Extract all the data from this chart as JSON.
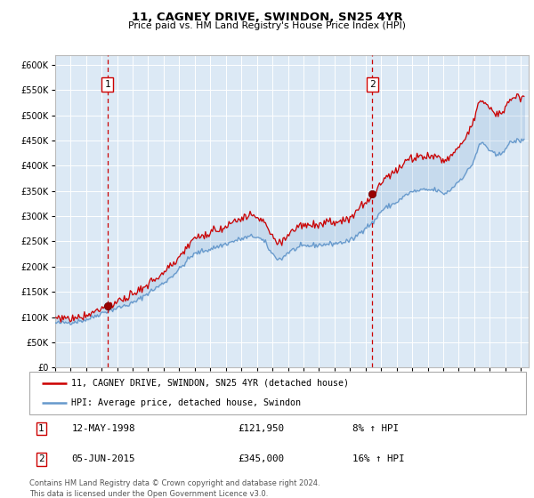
{
  "title": "11, CAGNEY DRIVE, SWINDON, SN25 4YR",
  "subtitle": "Price paid vs. HM Land Registry's House Price Index (HPI)",
  "footer": "Contains HM Land Registry data © Crown copyright and database right 2024.\nThis data is licensed under the Open Government Licence v3.0.",
  "legend_line1": "11, CAGNEY DRIVE, SWINDON, SN25 4YR (detached house)",
  "legend_line2": "HPI: Average price, detached house, Swindon",
  "sale1_date": "12-MAY-1998",
  "sale1_price": "£121,950",
  "sale1_hpi": "8% ↑ HPI",
  "sale1_year": 1998.37,
  "sale1_value": 121950,
  "sale2_date": "05-JUN-2015",
  "sale2_price": "£345,000",
  "sale2_hpi": "16% ↑ HPI",
  "sale2_year": 2015.42,
  "sale2_value": 345000,
  "red_color": "#cc0000",
  "blue_color": "#6699cc",
  "bg_color": "#dce9f5",
  "grid_color": "#ffffff",
  "ylim": [
    0,
    620000
  ],
  "yticks": [
    0,
    50000,
    100000,
    150000,
    200000,
    250000,
    300000,
    350000,
    400000,
    450000,
    500000,
    550000,
    600000
  ],
  "xlim_start": 1995.0,
  "xlim_end": 2025.5
}
